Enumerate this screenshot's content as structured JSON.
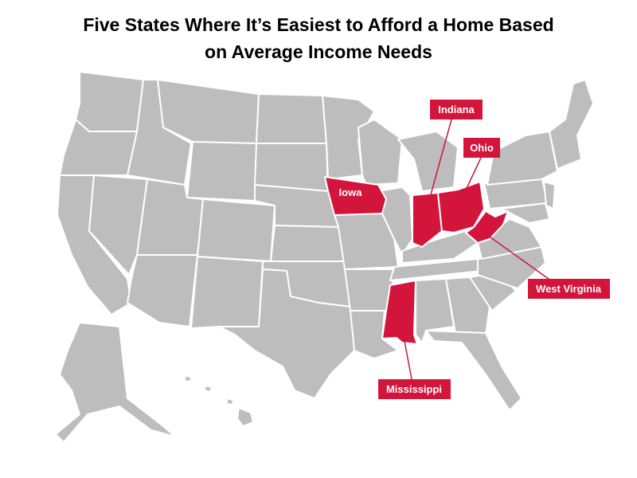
{
  "title": {
    "line1": "Five States Where It’s Easiest to Afford a Home Based",
    "line2": "on Average Income Needs"
  },
  "colors": {
    "highlight": "#d3153b",
    "base": "#bdbdbd",
    "border": "#ffffff",
    "label_text": "#ffffff"
  },
  "highlighted_states": [
    {
      "name": "Indiana",
      "label": "Indiana"
    },
    {
      "name": "Ohio",
      "label": "Ohio"
    },
    {
      "name": "Iowa",
      "label": "Iowa"
    },
    {
      "name": "West Virginia",
      "label": "West Virginia"
    },
    {
      "name": "Mississippi",
      "label": "Mississippi"
    }
  ]
}
